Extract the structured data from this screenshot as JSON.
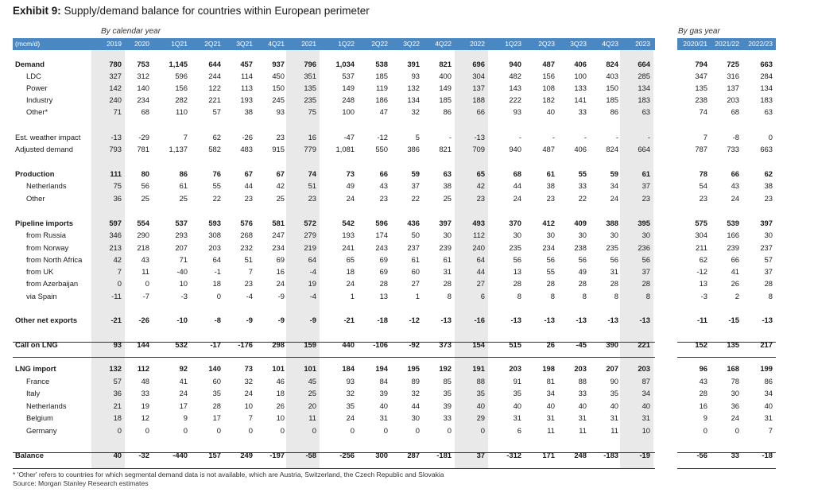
{
  "title": {
    "exhibit": "Exhibit 9:",
    "text": "Supply/demand balance for countries within European perimeter"
  },
  "groups": {
    "calendar": "By calendar year",
    "gas": "By gas year"
  },
  "unit_label": "(mcm/d)",
  "columns": [
    "2019",
    "2020",
    "1Q21",
    "2Q21",
    "3Q21",
    "4Q21",
    "2021",
    "1Q22",
    "2Q22",
    "3Q22",
    "4Q22",
    "2022",
    "1Q23",
    "2Q23",
    "3Q23",
    "4Q23",
    "2023",
    "2020/21",
    "2021/22",
    "2022/23"
  ],
  "rows": [
    {
      "label": "Demand",
      "bold": true,
      "values": [
        "780",
        "753",
        "1,145",
        "644",
        "457",
        "937",
        "796",
        "1,034",
        "538",
        "391",
        "821",
        "696",
        "940",
        "487",
        "406",
        "824",
        "664",
        "794",
        "725",
        "663"
      ]
    },
    {
      "label": "LDC",
      "values": [
        "327",
        "312",
        "596",
        "244",
        "114",
        "450",
        "351",
        "537",
        "185",
        "93",
        "400",
        "304",
        "482",
        "156",
        "100",
        "403",
        "285",
        "347",
        "316",
        "284"
      ]
    },
    {
      "label": "Power",
      "values": [
        "142",
        "140",
        "156",
        "122",
        "113",
        "150",
        "135",
        "149",
        "119",
        "132",
        "149",
        "137",
        "143",
        "108",
        "133",
        "150",
        "134",
        "135",
        "137",
        "134"
      ]
    },
    {
      "label": "Industry",
      "values": [
        "240",
        "234",
        "282",
        "221",
        "193",
        "245",
        "235",
        "248",
        "186",
        "134",
        "185",
        "188",
        "222",
        "182",
        "141",
        "185",
        "183",
        "238",
        "203",
        "183"
      ]
    },
    {
      "label": "Other*",
      "values": [
        "71",
        "68",
        "110",
        "57",
        "38",
        "93",
        "75",
        "100",
        "47",
        "32",
        "86",
        "66",
        "93",
        "40",
        "33",
        "86",
        "63",
        "74",
        "68",
        "63"
      ]
    },
    {
      "label": "Est. weather impact",
      "values": [
        "-13",
        "-29",
        "7",
        "62",
        "-26",
        "23",
        "16",
        "-47",
        "-12",
        "5",
        "-",
        "-13",
        "-",
        "-",
        "-",
        "-",
        "-",
        "7",
        "-8",
        "0"
      ]
    },
    {
      "label": "Adjusted demand",
      "values": [
        "793",
        "781",
        "1,137",
        "582",
        "483",
        "915",
        "779",
        "1,081",
        "550",
        "386",
        "821",
        "709",
        "940",
        "487",
        "406",
        "824",
        "664",
        "787",
        "733",
        "663"
      ]
    },
    {
      "label": "Production",
      "bold": true,
      "values": [
        "111",
        "80",
        "86",
        "76",
        "67",
        "67",
        "74",
        "73",
        "66",
        "59",
        "63",
        "65",
        "68",
        "61",
        "55",
        "59",
        "61",
        "78",
        "66",
        "62"
      ]
    },
    {
      "label": "Netherlands",
      "values": [
        "75",
        "56",
        "61",
        "55",
        "44",
        "42",
        "51",
        "49",
        "43",
        "37",
        "38",
        "42",
        "44",
        "38",
        "33",
        "34",
        "37",
        "54",
        "43",
        "38"
      ]
    },
    {
      "label": "Other",
      "values": [
        "36",
        "25",
        "25",
        "22",
        "23",
        "25",
        "23",
        "24",
        "23",
        "22",
        "25",
        "23",
        "24",
        "23",
        "22",
        "24",
        "23",
        "23",
        "24",
        "23"
      ]
    },
    {
      "label": "Pipeline imports",
      "bold": true,
      "values": [
        "597",
        "554",
        "537",
        "593",
        "576",
        "581",
        "572",
        "542",
        "596",
        "436",
        "397",
        "493",
        "370",
        "412",
        "409",
        "388",
        "395",
        "575",
        "539",
        "397"
      ]
    },
    {
      "label": "from Russia",
      "values": [
        "346",
        "290",
        "293",
        "308",
        "268",
        "247",
        "279",
        "193",
        "174",
        "50",
        "30",
        "112",
        "30",
        "30",
        "30",
        "30",
        "30",
        "304",
        "166",
        "30"
      ]
    },
    {
      "label": "from Norway",
      "values": [
        "213",
        "218",
        "207",
        "203",
        "232",
        "234",
        "219",
        "241",
        "243",
        "237",
        "239",
        "240",
        "235",
        "234",
        "238",
        "235",
        "236",
        "211",
        "239",
        "237"
      ]
    },
    {
      "label": "from North Africa",
      "values": [
        "42",
        "43",
        "71",
        "64",
        "51",
        "69",
        "64",
        "65",
        "69",
        "61",
        "61",
        "64",
        "56",
        "56",
        "56",
        "56",
        "56",
        "62",
        "66",
        "57"
      ]
    },
    {
      "label": "from UK",
      "values": [
        "7",
        "11",
        "-40",
        "-1",
        "7",
        "16",
        "-4",
        "18",
        "69",
        "60",
        "31",
        "44",
        "13",
        "55",
        "49",
        "31",
        "37",
        "-12",
        "41",
        "37"
      ]
    },
    {
      "label": "from Azerbaijan",
      "values": [
        "0",
        "0",
        "10",
        "18",
        "23",
        "24",
        "19",
        "24",
        "28",
        "27",
        "28",
        "27",
        "28",
        "28",
        "28",
        "28",
        "28",
        "13",
        "26",
        "28"
      ]
    },
    {
      "label": "via Spain",
      "values": [
        "-11",
        "-7",
        "-3",
        "0",
        "-4",
        "-9",
        "-4",
        "1",
        "13",
        "1",
        "8",
        "6",
        "8",
        "8",
        "8",
        "8",
        "8",
        "-3",
        "2",
        "8"
      ]
    },
    {
      "label": "Other net exports",
      "bold": true,
      "values": [
        "-21",
        "-26",
        "-10",
        "-8",
        "-9",
        "-9",
        "-9",
        "-21",
        "-18",
        "-12",
        "-13",
        "-16",
        "-13",
        "-13",
        "-13",
        "-13",
        "-13",
        "-11",
        "-15",
        "-13"
      ]
    },
    {
      "label": "Call on LNG",
      "bold": true,
      "values": [
        "93",
        "144",
        "532",
        "-17",
        "-176",
        "298",
        "159",
        "440",
        "-106",
        "-92",
        "373",
        "154",
        "515",
        "26",
        "-45",
        "390",
        "221",
        "152",
        "135",
        "217"
      ]
    },
    {
      "label": "LNG import",
      "bold": true,
      "values": [
        "132",
        "112",
        "92",
        "140",
        "73",
        "101",
        "101",
        "184",
        "194",
        "195",
        "192",
        "191",
        "203",
        "198",
        "203",
        "207",
        "203",
        "96",
        "168",
        "199"
      ]
    },
    {
      "label": "France",
      "values": [
        "57",
        "48",
        "41",
        "60",
        "32",
        "46",
        "45",
        "93",
        "84",
        "89",
        "85",
        "88",
        "91",
        "81",
        "88",
        "90",
        "87",
        "43",
        "78",
        "86"
      ]
    },
    {
      "label": "Italy",
      "values": [
        "36",
        "33",
        "24",
        "35",
        "24",
        "18",
        "25",
        "32",
        "39",
        "32",
        "35",
        "35",
        "35",
        "34",
        "33",
        "35",
        "34",
        "28",
        "30",
        "34"
      ]
    },
    {
      "label": "Netherlands",
      "values": [
        "21",
        "19",
        "17",
        "28",
        "10",
        "26",
        "20",
        "35",
        "40",
        "44",
        "39",
        "40",
        "40",
        "40",
        "40",
        "40",
        "40",
        "16",
        "36",
        "40"
      ]
    },
    {
      "label": "Belgium",
      "values": [
        "18",
        "12",
        "9",
        "17",
        "7",
        "10",
        "11",
        "24",
        "31",
        "30",
        "33",
        "29",
        "31",
        "31",
        "31",
        "31",
        "31",
        "9",
        "24",
        "31"
      ]
    },
    {
      "label": "Germany",
      "values": [
        "0",
        "0",
        "0",
        "0",
        "0",
        "0",
        "0",
        "0",
        "0",
        "0",
        "0",
        "0",
        "6",
        "11",
        "11",
        "11",
        "10",
        "0",
        "0",
        "7"
      ]
    },
    {
      "label": "Balance",
      "bold": true,
      "values": [
        "40",
        "-32",
        "-440",
        "157",
        "249",
        "-197",
        "-58",
        "-256",
        "300",
        "287",
        "-181",
        "37",
        "-312",
        "171",
        "248",
        "-183",
        "-19",
        "-56",
        "33",
        "-18"
      ]
    }
  ],
  "footnote": "* 'Other' refers to countries for which segmental demand data is not available, which are Austria, Switzerland, the Czech Republic and Slovakia",
  "source": "Source: Morgan Stanley Research estimates",
  "colors": {
    "header": "#4a88c4",
    "shade": "#e9e9e9"
  }
}
